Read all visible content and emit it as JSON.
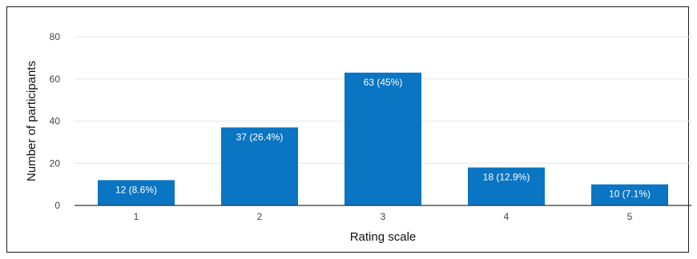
{
  "chart_data": {
    "type": "bar",
    "categories": [
      "1",
      "2",
      "3",
      "4",
      "5"
    ],
    "values": [
      12,
      37,
      63,
      18,
      10
    ],
    "data_labels": [
      "12 (8.6%)",
      "37 (26.4%)",
      "63 (45%)",
      "18 (12.9%)",
      "10 (7.1%)"
    ],
    "title": "",
    "xlabel": "Rating scale",
    "ylabel": "Number of participants",
    "ylim": [
      0,
      80
    ],
    "yticks": [
      "0",
      "20",
      "40",
      "60",
      "80"
    ],
    "grid": true,
    "legend": "none",
    "bar_color": "#0a75c2",
    "grid_color": "#e6e6e6",
    "axis_color": "#333333"
  }
}
